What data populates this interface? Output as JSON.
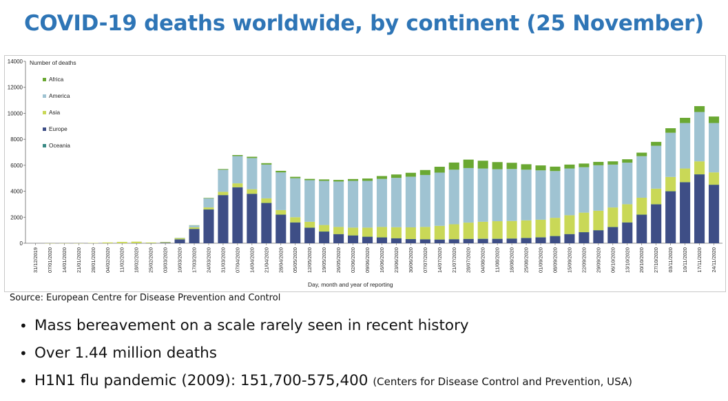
{
  "title": "COVID-19 deaths worldwide, by continent (25 November)",
  "source_label": "Source:",
  "source_text": "European Centre for Disease Prevention and Control",
  "bullets": [
    {
      "text": "Mass bereavement on a scale rarely seen in recent history"
    },
    {
      "text": "Over 1.44 million deaths"
    },
    {
      "text": "H1N1 flu pandemic (2009): 151,700-575,400 ",
      "cite_prefix": "(Centers for Disease Control and Prevention, USA)"
    }
  ],
  "colors": {
    "Africa": "#6aa832",
    "America": "#9fc3d2",
    "Asia": "#c9d857",
    "Europe": "#3e4e86",
    "Oceania": "#3a8a85"
  },
  "chart_data": {
    "type": "bar",
    "stacked": true,
    "ylabel": "Number of deaths",
    "xlabel": "Day, month and year of reporting",
    "ylim": [
      0,
      14000
    ],
    "yticks": [
      0,
      2000,
      4000,
      6000,
      8000,
      10000,
      12000,
      14000
    ],
    "legend_position": "top-left",
    "grid": false,
    "x_tick_labels": [
      "31/12/2019",
      "07/01/2020",
      "14/01/2020",
      "21/01/2020",
      "28/01/2020",
      "04/02/2020",
      "11/02/2020",
      "18/02/2020",
      "25/02/2020",
      "03/03/2020",
      "10/03/2020",
      "17/03/2020",
      "24/03/2020",
      "31/03/2020",
      "07/04/2020",
      "14/04/2020",
      "21/04/2020",
      "28/04/2020",
      "05/05/2020",
      "12/05/2020",
      "19/05/2020",
      "26/05/2020",
      "02/06/2020",
      "09/06/2020",
      "16/06/2020",
      "23/06/2020",
      "30/06/2020",
      "07/07/2020",
      "14/07/2020",
      "21/07/2020",
      "28/07/2020",
      "04/08/2020",
      "11/08/2020",
      "18/08/2020",
      "25/08/2020",
      "01/09/2020",
      "08/09/2020",
      "15/09/2020",
      "22/09/2020",
      "29/09/2020",
      "06/10/2020",
      "13/10/2020",
      "20/10/2020",
      "27/10/2020",
      "03/11/2020",
      "10/11/2020",
      "17/11/2020",
      "24/11/2020"
    ],
    "categories": [
      "31/12/2019",
      "07/01/2020",
      "14/01/2020",
      "21/01/2020",
      "28/01/2020",
      "04/02/2020",
      "11/02/2020",
      "18/02/2020",
      "25/02/2020",
      "03/03/2020",
      "10/03/2020",
      "17/03/2020",
      "24/03/2020",
      "31/03/2020",
      "07/04/2020",
      "14/04/2020",
      "21/04/2020",
      "28/04/2020",
      "05/05/2020",
      "12/05/2020",
      "19/05/2020",
      "26/05/2020",
      "02/06/2020",
      "09/06/2020",
      "16/06/2020",
      "23/06/2020",
      "30/06/2020",
      "07/07/2020",
      "14/07/2020",
      "21/07/2020",
      "28/07/2020",
      "04/08/2020",
      "11/08/2020",
      "18/08/2020",
      "25/08/2020",
      "01/09/2020",
      "08/09/2020",
      "15/09/2020",
      "22/09/2020",
      "29/09/2020",
      "06/10/2020",
      "13/10/2020",
      "20/10/2020",
      "27/10/2020",
      "03/11/2020",
      "10/11/2020",
      "17/11/2020",
      "24/11/2020"
    ],
    "series": [
      {
        "name": "Africa",
        "values": [
          0,
          0,
          0,
          0,
          0,
          0,
          0,
          0,
          0,
          0,
          2,
          15,
          35,
          55,
          80,
          100,
          110,
          120,
          110,
          100,
          110,
          120,
          140,
          180,
          220,
          260,
          300,
          380,
          450,
          550,
          650,
          600,
          550,
          480,
          420,
          380,
          340,
          300,
          280,
          260,
          250,
          260,
          270,
          300,
          350,
          400,
          450,
          500
        ]
      },
      {
        "name": "America",
        "values": [
          0,
          0,
          0,
          0,
          0,
          0,
          0,
          0,
          0,
          1,
          20,
          150,
          700,
          1700,
          2100,
          2400,
          2600,
          2900,
          3000,
          3200,
          3400,
          3500,
          3600,
          3600,
          3700,
          3800,
          3900,
          4000,
          4100,
          4200,
          4200,
          4100,
          4000,
          4000,
          3900,
          3800,
          3600,
          3600,
          3500,
          3500,
          3300,
          3200,
          3200,
          3300,
          3400,
          3500,
          3800,
          3800
        ]
      },
      {
        "name": "Asia",
        "values": [
          0,
          1,
          1,
          1,
          25,
          60,
          100,
          120,
          50,
          60,
          80,
          120,
          150,
          250,
          300,
          350,
          350,
          350,
          400,
          450,
          500,
          550,
          600,
          700,
          800,
          850,
          900,
          950,
          1050,
          1150,
          1250,
          1300,
          1350,
          1350,
          1350,
          1350,
          1400,
          1450,
          1500,
          1500,
          1500,
          1400,
          1300,
          1200,
          1100,
          1050,
          1000,
          950
        ]
      },
      {
        "name": "Europe",
        "values": [
          0,
          0,
          0,
          0,
          0,
          0,
          0,
          1,
          5,
          40,
          300,
          1100,
          2600,
          3700,
          4300,
          3800,
          3100,
          2200,
          1600,
          1200,
          900,
          700,
          600,
          500,
          450,
          380,
          320,
          300,
          280,
          300,
          320,
          330,
          330,
          350,
          400,
          450,
          550,
          700,
          850,
          1000,
          1250,
          1600,
          2200,
          3000,
          4000,
          4700,
          5300,
          4500
        ]
      },
      {
        "name": "Oceania",
        "values": [
          0,
          0,
          0,
          0,
          0,
          0,
          0,
          0,
          0,
          0,
          1,
          2,
          3,
          5,
          8,
          5,
          3,
          2,
          1,
          1,
          1,
          1,
          1,
          1,
          1,
          1,
          1,
          3,
          6,
          10,
          15,
          20,
          15,
          12,
          10,
          8,
          5,
          3,
          2,
          1,
          1,
          1,
          1,
          1,
          1,
          1,
          1,
          1
        ]
      }
    ]
  }
}
